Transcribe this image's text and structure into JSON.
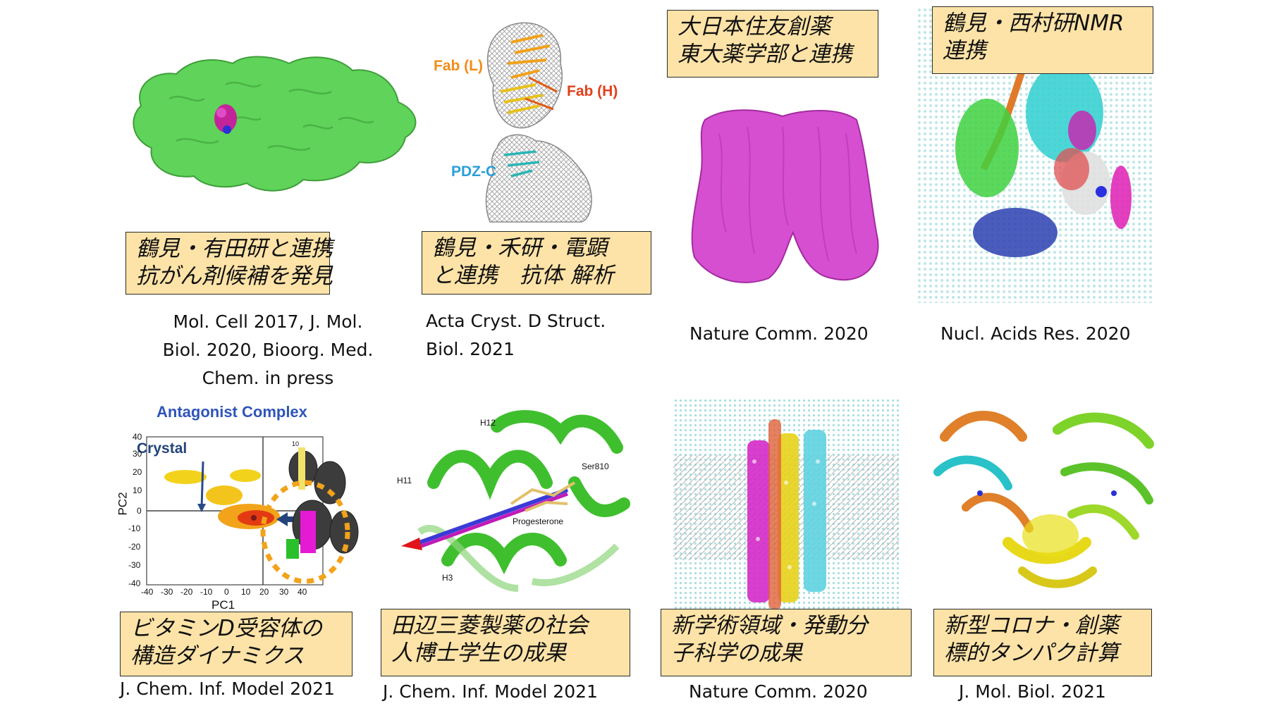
{
  "panels": [
    {
      "note": [
        "鶴見・有田研と連携",
        "抗がん剤候補を発見"
      ],
      "citation": [
        "Mol. Cell 2017, J. Mol.",
        "Biol. 2020, Bioorg. Med.",
        "Chem. in press"
      ]
    },
    {
      "labels": {
        "fab_l": "Fab (L)",
        "fab_h": "Fab (H)",
        "pdz_c": "PDZ-C"
      },
      "note": [
        "鶴見・禾研・電顕",
        "と連携　抗体 解析"
      ],
      "citation": [
        "Acta Cryst. D Struct.",
        "Biol. 2021"
      ]
    },
    {
      "note": [
        "大日本住友創薬",
        "東大薬学部と連携"
      ],
      "citation": [
        "Nature Comm. 2020"
      ]
    },
    {
      "note": [
        "鶴見・西村研NMR",
        "連携"
      ],
      "citation": [
        "Nucl. Acids Res. 2020"
      ]
    },
    {
      "title": "Antagonist Complex",
      "crystal_label": "Crystal",
      "xlabel": "PC1",
      "ylabel": "PC2",
      "yticks": [
        "40",
        "30",
        "20",
        "10",
        "0",
        "-10",
        "-20",
        "-30",
        "-40"
      ],
      "xticks": [
        "-40",
        "-30",
        "-20",
        "-10",
        "0",
        "10",
        "20",
        "30",
        "40"
      ],
      "helix_label": "10",
      "note": [
        "ビタミンD受容体の",
        "構造ダイナミクス"
      ],
      "citation": [
        "J. Chem. Inf. Model 2021"
      ]
    },
    {
      "labels": {
        "h12": "H12",
        "h11": "H11",
        "h3": "H3",
        "ser": "Ser810",
        "prog": "Progesterone"
      },
      "note": [
        "田辺三菱製薬の社会",
        "人博士学生の成果"
      ],
      "citation": [
        "J. Chem. Inf. Model 2021"
      ]
    },
    {
      "note": [
        "新学術領域・発動分",
        "子科学の成果"
      ],
      "citation": [
        "Nature  Comm. 2020"
      ]
    },
    {
      "note": [
        "新型コロナ・創薬",
        "標的タンパク計算"
      ],
      "citation": [
        "J. Mol. Biol. 2021"
      ]
    }
  ],
  "colors": {
    "note_bg": "#fde3a7",
    "protein_green": "#5fd35a",
    "magenta": "#d64fd0",
    "fab_l": "#f28c1a",
    "fab_h": "#e2401c",
    "pdz": "#2a9fd8",
    "title_blue": "#2f55b8"
  }
}
